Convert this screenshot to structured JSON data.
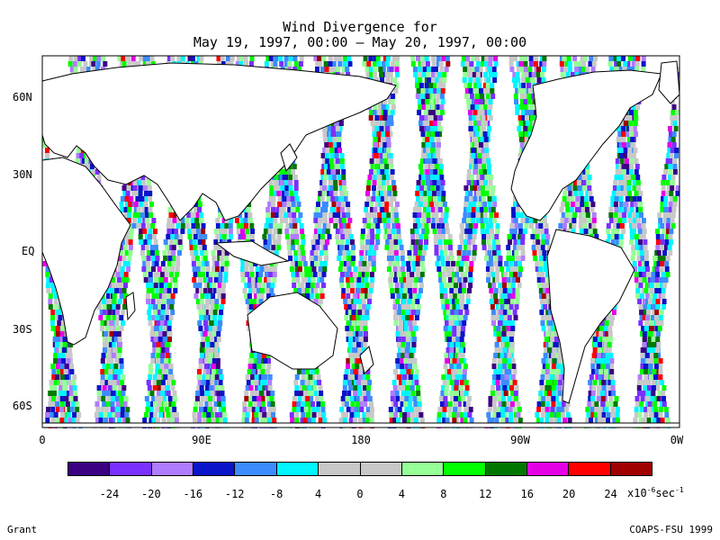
{
  "title": {
    "line1": "Wind Divergence for",
    "line2": "May 19, 1997, 00:00 – May 20, 1997, 00:00"
  },
  "lat_labels": [
    "60N",
    "30N",
    "EQ",
    "30S",
    "60S"
  ],
  "lon_labels": [
    "0",
    "90E",
    "180",
    "90W",
    "0W"
  ],
  "colorbar": {
    "labels": [
      "-24",
      "-20",
      "-16",
      "-12",
      "-8",
      "4",
      "0",
      "4",
      "8",
      "12",
      "16",
      "20",
      "24"
    ],
    "unit_base": "x10",
    "unit_exp": "-6",
    "unit_tail": "sec",
    "unit_tail_exp": "-1",
    "colors": [
      "#3c0082",
      "#7a30ff",
      "#b07cff",
      "#0a14c8",
      "#3c8cff",
      "#00f5ff",
      "#c8c8c8",
      "#c8c8c8",
      "#96ff96",
      "#00ff00",
      "#007800",
      "#e600e6",
      "#ff0000",
      "#a00000"
    ]
  },
  "footer": {
    "left": "Grant",
    "right": "COAPS-FSU 1999"
  }
}
